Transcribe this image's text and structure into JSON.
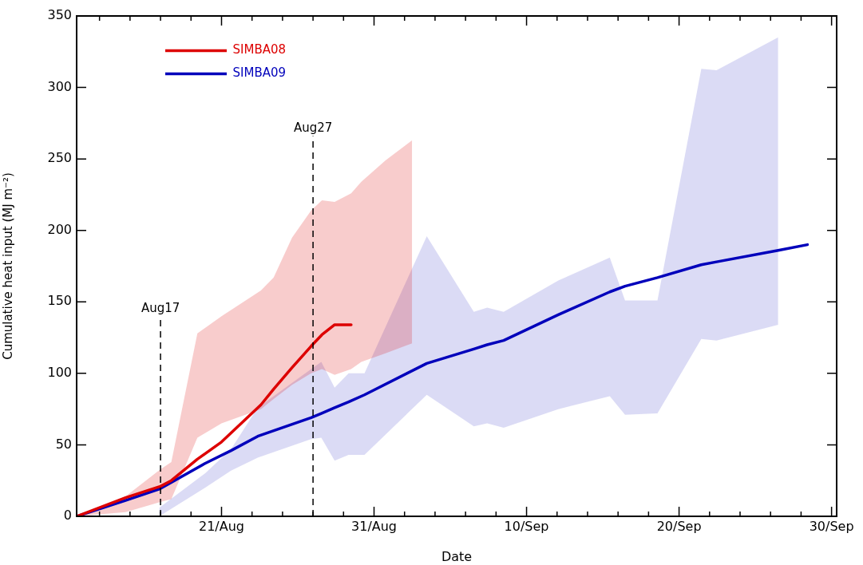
{
  "chart_data": {
    "type": "line",
    "xlabel": "Date",
    "ylabel": "Cumulative heat input (MJ m⁻²)",
    "xlim": [
      "--08-11T12:00",
      "--09-30T08:00"
    ],
    "xticks": [
      {
        "value": "--08-13",
        "label": null
      },
      {
        "value": "--08-15",
        "label": null
      },
      {
        "value": "--08-17",
        "label": null
      },
      {
        "value": "--08-19",
        "label": null
      },
      {
        "value": "--08-21",
        "label": "21/Aug"
      },
      {
        "value": "--08-23",
        "label": null
      },
      {
        "value": "--08-25",
        "label": null
      },
      {
        "value": "--08-27",
        "label": null
      },
      {
        "value": "--08-29",
        "label": null
      },
      {
        "value": "--08-31",
        "label": "31/Aug"
      },
      {
        "value": "--09-02",
        "label": null
      },
      {
        "value": "--09-04",
        "label": null
      },
      {
        "value": "--09-06",
        "label": null
      },
      {
        "value": "--09-08",
        "label": null
      },
      {
        "value": "--09-10",
        "label": "10/Sep"
      },
      {
        "value": "--09-12",
        "label": null
      },
      {
        "value": "--09-14",
        "label": null
      },
      {
        "value": "--09-16",
        "label": null
      },
      {
        "value": "--09-18",
        "label": null
      },
      {
        "value": "--09-20",
        "label": "20/Sep"
      },
      {
        "value": "--09-22",
        "label": null
      },
      {
        "value": "--09-24",
        "label": null
      },
      {
        "value": "--09-26",
        "label": null
      },
      {
        "value": "--09-28",
        "label": null
      },
      {
        "value": "--09-30",
        "label": "30/Sep"
      }
    ],
    "ylim": [
      0,
      350
    ],
    "yticks": [
      0,
      50,
      100,
      150,
      200,
      250,
      300,
      350
    ],
    "grid": false,
    "legend": "top left",
    "marker": "none",
    "line_style": "solid",
    "ref_lines": [
      {
        "axis": "x",
        "value": "--08-17",
        "label": "Aug17",
        "line_style": "dashed"
      },
      {
        "axis": "x",
        "value": "--08-27",
        "label": "Aug27",
        "line_style": "dashed"
      }
    ],
    "series": [
      {
        "name": "SIMBA08",
        "color": "#dd0000",
        "x": [
          "--08-11T12:00",
          "--08-14T17:00",
          "--08-17T00:00",
          "--08-17T17:00",
          "--08-19T10:00",
          "--08-21",
          "--08-23T14:00",
          "--08-24T10:00",
          "--08-25T15:00",
          "--08-26T21:00",
          "--08-27T14:00",
          "--08-28T10:00",
          "--08-29T12:00",
          "--08-30T04:00",
          "--08-31T18:00",
          "--09-02T12:00"
        ],
        "values": [
          0,
          13,
          21,
          25,
          40,
          52,
          78,
          89,
          104,
          119,
          127,
          134,
          134,
          null,
          null,
          null
        ],
        "upper": [
          0,
          14,
          33,
          38,
          128,
          140,
          158,
          167,
          195,
          214,
          221,
          220,
          226,
          234,
          249,
          263
        ],
        "lower": [
          0,
          3,
          10,
          12,
          55,
          65,
          75,
          82,
          92,
          100,
          103,
          99,
          103,
          108,
          114,
          121
        ]
      },
      {
        "name": "SIMBA09",
        "color": "#0000bb",
        "x": [
          "--08-11T12:00",
          "--08-14T16:00",
          "--08-16T22:00",
          "--08-19T22:00",
          "--08-21T15:00",
          "--08-23T09:00",
          "--08-26T21:00",
          "--08-27T13:00",
          "--08-28T10:00",
          "--08-29T08:00",
          "--08-30T09:00",
          "--09-03T11:00",
          "--09-06T13:00",
          "--09-07T10:00",
          "--09-08T12:00",
          "--09-12T02:00",
          "--09-15T11:00",
          "--09-16T11:00",
          "--09-18T14:00",
          "--09-21T11:00",
          "--09-22T11:00",
          "--09-26T12:00",
          "--09-28T10:00"
        ],
        "values": [
          0,
          11,
          19,
          37,
          46,
          56,
          69,
          72,
          76,
          80,
          85,
          107,
          117,
          120,
          123,
          141,
          157,
          161,
          167,
          176,
          178,
          186,
          190
        ],
        "upper": [
          null,
          null,
          6,
          30,
          47,
          76,
          103,
          108,
          90,
          100,
          100,
          196,
          143,
          146,
          143,
          165,
          181,
          151,
          151,
          313,
          312,
          335,
          null
        ],
        "lower": [
          null,
          null,
          0,
          20,
          32,
          41,
          54,
          55,
          39,
          43,
          43,
          85,
          63,
          65,
          62,
          75,
          84,
          71,
          72,
          124,
          123,
          134,
          null
        ]
      }
    ]
  }
}
